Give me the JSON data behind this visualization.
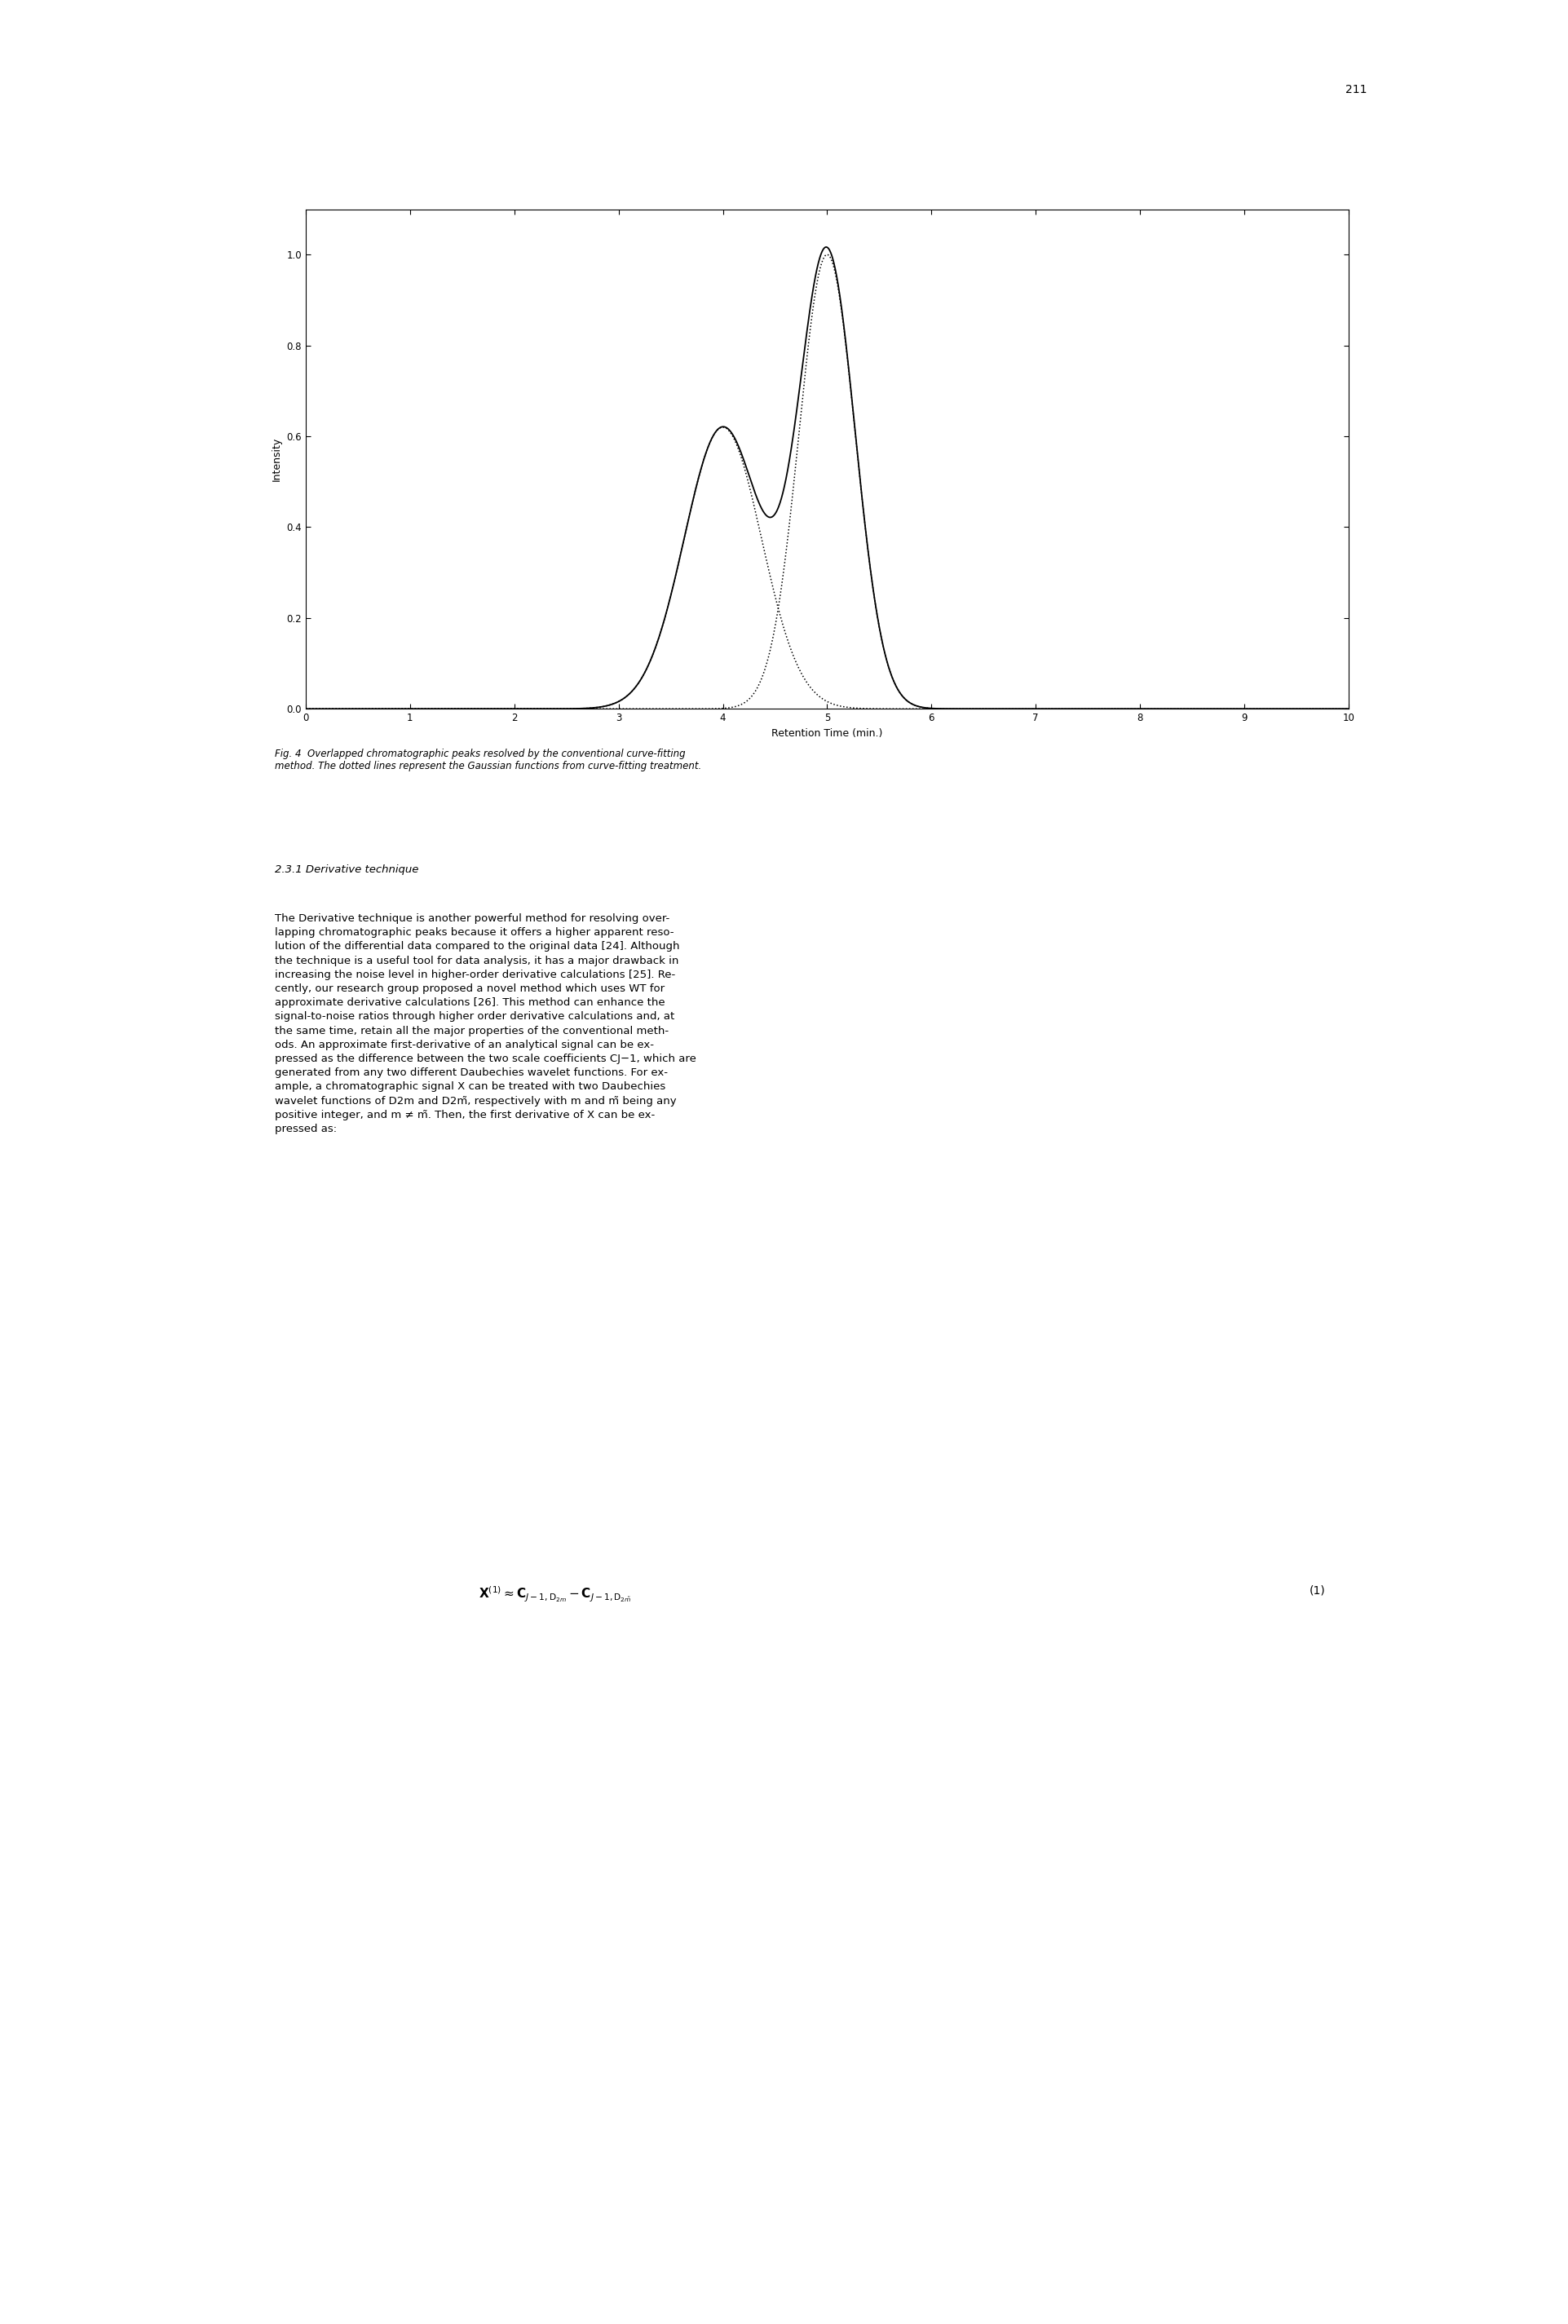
{
  "xlabel": "Retention Time (min.)",
  "ylabel": "Intensity",
  "xlim": [
    0,
    10
  ],
  "ylim": [
    0,
    1.1
  ],
  "xticks": [
    0,
    1,
    2,
    3,
    4,
    5,
    6,
    7,
    8,
    9,
    10
  ],
  "yticks": [
    0,
    0.2,
    0.4,
    0.6,
    0.8,
    1
  ],
  "page_number": "211",
  "composite": {
    "mu1": 4.0,
    "sigma1": 0.37,
    "amp1": 0.62,
    "mu2": 5.0,
    "sigma2": 0.27,
    "amp2": 1.0
  },
  "gaussian1": {
    "mu": 4.0,
    "sigma": 0.37,
    "amp": 0.62
  },
  "gaussian2": {
    "mu": 5.0,
    "sigma": 0.27,
    "amp": 1.0
  },
  "fig_bg": "#ffffff",
  "line_color": "#000000",
  "caption": "Fig. 4  Overlapped chromatographic peaks resolved by the conventional curve-fitting\nmethod. The dotted lines represent the Gaussian functions from curve-fitting treatment.",
  "section_heading": "2.3.1 Derivative technique",
  "body_text": "The Derivative technique is another powerful method for resolving over-\nlapping chromatographic peaks because it offers a higher apparent reso-\nlution of the differential data compared to the original data [24]. Although\nthe technique is a useful tool for data analysis, it has a major drawback in\nincreasing the noise level in higher-order derivative calculations [25]. Re-\ncently, our research group proposed a novel method which uses WT for\napproximate derivative calculations [26]. This method can enhance the\nsignal-to-noise ratios through higher order derivative calculations and, at\nthe same time, retain all the major properties of the conventional meth-\nods. An approximate first-derivative of an analytical signal can be ex-\npressed as the difference between the two scale coefficients CJ−1, which are\ngenerated from any two different Daubechies wavelet functions. For ex-\nample, a chromatographic signal X can be treated with two Daubechies\nwavelet functions of D2m and D2m̃, respectively with m and m̃ being any\npositive integer, and m ≠ m̃. Then, the first derivative of X can be ex-\npressed as:"
}
